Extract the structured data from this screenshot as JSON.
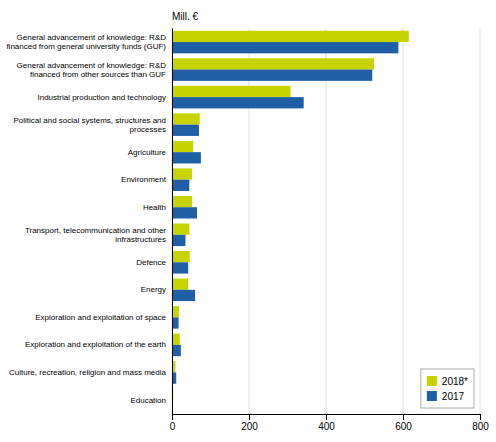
{
  "chart_data": {
    "type": "bar",
    "orientation": "horizontal",
    "categories": [
      "General advancement of knowledge: R&D\nfinanced from general university funds (GUF)",
      "General advancement of knowledge: R&D\nfinanced from other sources than GUF",
      "Industrial production and technology",
      "Political and social systems, structures and\nprocesses",
      "Agriculture",
      "Environment",
      "Health",
      "Transport, telecommunication and other\ninfrastructures",
      "Defence",
      "Energy",
      "Exploration and exploitation of space",
      "Exploration and exploitation of the earth",
      "Culture, recreation, religion and mass media",
      "Education"
    ],
    "series": [
      {
        "name": "2018*",
        "color": "#c8d400",
        "values": [
          615,
          525,
          308,
          72,
          55,
          52,
          52,
          45,
          46,
          42,
          18,
          20,
          9,
          3
        ]
      },
      {
        "name": "2017",
        "color": "#1f5fa6",
        "values": [
          588,
          520,
          342,
          70,
          75,
          45,
          65,
          35,
          42,
          60,
          17,
          23,
          11,
          2
        ]
      }
    ],
    "annotations": [
      "Mill. €"
    ],
    "xlim": [
      0,
      800
    ],
    "xticks": [
      0,
      200,
      400,
      600,
      800
    ],
    "grid": true,
    "legend": "lower right"
  }
}
